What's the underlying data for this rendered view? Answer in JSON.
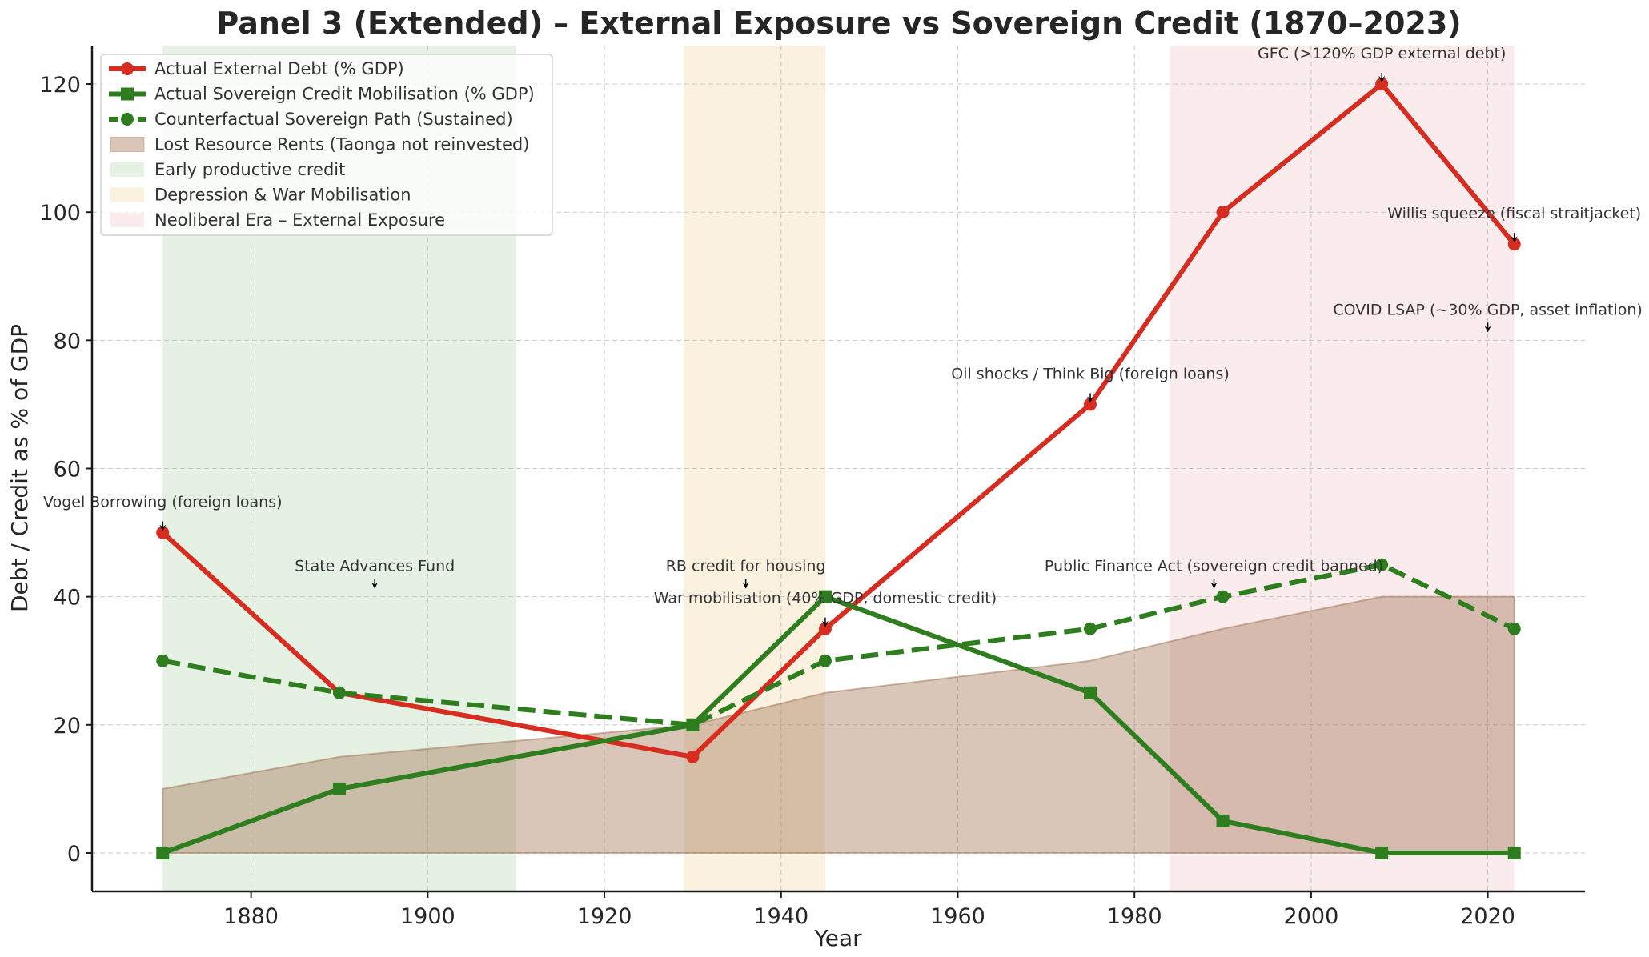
{
  "chart_data": {
    "type": "line",
    "title": "Panel 3 (Extended) – External Exposure vs Sovereign Credit (1870–2023)",
    "xlabel": "Year",
    "ylabel": "Debt / Credit as % of GDP",
    "xlim": [
      1862,
      2031
    ],
    "ylim": [
      -6,
      126
    ],
    "xticks": [
      1880,
      1900,
      1920,
      1940,
      1960,
      1980,
      2000,
      2020
    ],
    "yticks": [
      0,
      20,
      40,
      60,
      80,
      100,
      120
    ],
    "grid": true,
    "legend_position": "top-left",
    "x": [
      1870,
      1890,
      1930,
      1945,
      1975,
      1990,
      2008,
      2023
    ],
    "series": [
      {
        "name": "Actual External Debt (% GDP)",
        "kind": "line",
        "style": "solid",
        "marker": "circle",
        "color": "#d62d20",
        "values": [
          50,
          25,
          15,
          35,
          70,
          100,
          120,
          95
        ]
      },
      {
        "name": "Actual Sovereign Credit Mobilisation (% GDP)",
        "kind": "line",
        "style": "solid",
        "marker": "square",
        "color": "#2e7d1e",
        "values": [
          0,
          10,
          20,
          40,
          25,
          5,
          0,
          0
        ]
      },
      {
        "name": "Counterfactual Sovereign Path (Sustained)",
        "kind": "line",
        "style": "dashed",
        "marker": "circle",
        "color": "#2e7d1e",
        "values": [
          30,
          25,
          20,
          30,
          35,
          40,
          45,
          35
        ]
      },
      {
        "name": "Lost Resource Rents (Taonga not reinvested)",
        "kind": "area",
        "color": "#a0704f",
        "values": [
          10,
          15,
          20,
          25,
          30,
          35,
          40,
          40
        ]
      }
    ],
    "spans": [
      {
        "name": "Early productive credit",
        "start": 1870,
        "end": 1910,
        "color": "#d4e7d0"
      },
      {
        "name": "Depression & War Mobilisation",
        "start": 1929,
        "end": 1945,
        "color": "#f7e7c8"
      },
      {
        "name": "Neoliberal Era – External Exposure",
        "start": 1984,
        "end": 2023,
        "color": "#f6dfdf"
      }
    ],
    "annotations": [
      {
        "text": "Vogel Borrowing (foreign loans)",
        "x": 1870,
        "y": 50,
        "text_y": 54
      },
      {
        "text": "State Advances Fund",
        "x": 1894,
        "y": 41,
        "text_y": 44
      },
      {
        "text": "RB credit for housing",
        "x": 1936,
        "y": 41,
        "text_y": 44
      },
      {
        "text": "War mobilisation (40% GDP, domestic credit)",
        "x": 1945,
        "y": 35,
        "text_y": 39
      },
      {
        "text": "Oil shocks / Think Big (foreign loans)",
        "x": 1975,
        "y": 70,
        "text_y": 74
      },
      {
        "text": "Public Finance Act (sovereign credit banned)",
        "x": 1989,
        "y": 41,
        "text_y": 44
      },
      {
        "text": "GFC (>120% GDP external debt)",
        "x": 2008,
        "y": 120,
        "text_y": 124
      },
      {
        "text": "Willis squeeze (fiscal straitjacket)",
        "x": 2023,
        "y": 95,
        "text_y": 99
      },
      {
        "text": "COVID LSAP (~30% GDP, asset inflation)",
        "x": 2020,
        "y": 81,
        "text_y": 84
      }
    ]
  }
}
